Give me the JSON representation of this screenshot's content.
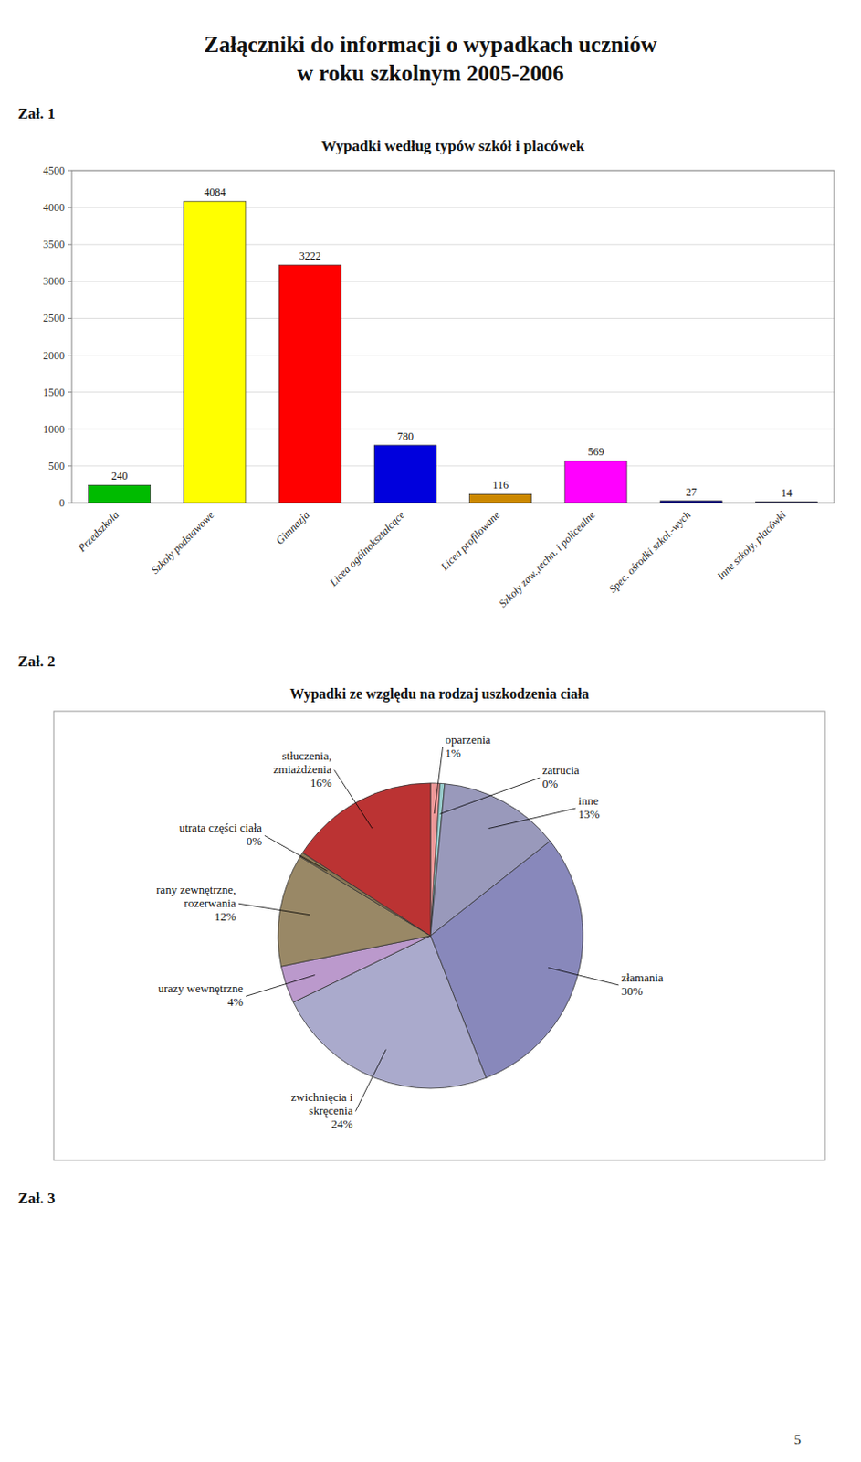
{
  "title": "Załączniki do informacji o wypadkach uczniów\nw roku szkolnym 2005-2006",
  "annotations": [
    "Zał. 1",
    "Zał. 2",
    "Zał. 3",
    "5"
  ],
  "chart_data": [
    {
      "type": "bar",
      "title": "Wypadki według typów szkół i placówek",
      "categories": [
        "Przedszkola",
        "Szkoły podstawowe",
        "Gimnazja",
        "Licea ogólnokształcące",
        "Licea profilowane",
        "Szkoły zaw.,techn. i policealne",
        "Spec. ośrodki szkol.-wych",
        "Inne szkoły, placówki"
      ],
      "values": [
        240,
        4084,
        3222,
        780,
        116,
        569,
        27,
        14
      ],
      "colors": [
        "#00bb00",
        "#ffff00",
        "#ff0000",
        "#0000dd",
        "#cc8800",
        "#ff00ff",
        "#000088",
        "#000055"
      ],
      "ylim": [
        0,
        4500
      ],
      "yticks": [
        0,
        500,
        1000,
        1500,
        2000,
        2500,
        3000,
        3500,
        4000,
        4500
      ],
      "grid": true,
      "data_labels": true
    },
    {
      "type": "pie",
      "title": "Wypadki ze względu na rodzaj uszkodzenia ciała",
      "categories": [
        "oparzenia",
        "zatrucia",
        "inne",
        "złamania",
        "zwichnięcia i\nskręcenia",
        "urazy wewnętrzne",
        "rany zewnętrzne,\nrozerwania",
        "utrata części ciała",
        "stłuczenia,\nzmiażdżenia"
      ],
      "values": [
        1,
        0.5,
        13,
        30,
        24,
        4,
        12,
        0.5,
        16
      ],
      "value_labels": [
        "1%",
        "0%",
        "13%",
        "30%",
        "24%",
        "4%",
        "12%",
        "0%",
        "16%"
      ],
      "colors": [
        "#ee9999",
        "#99cccc",
        "#9999bb",
        "#8888bb",
        "#aaaacc",
        "#bb99cc",
        "#998866",
        "#887755",
        "#bb3333"
      ]
    }
  ]
}
